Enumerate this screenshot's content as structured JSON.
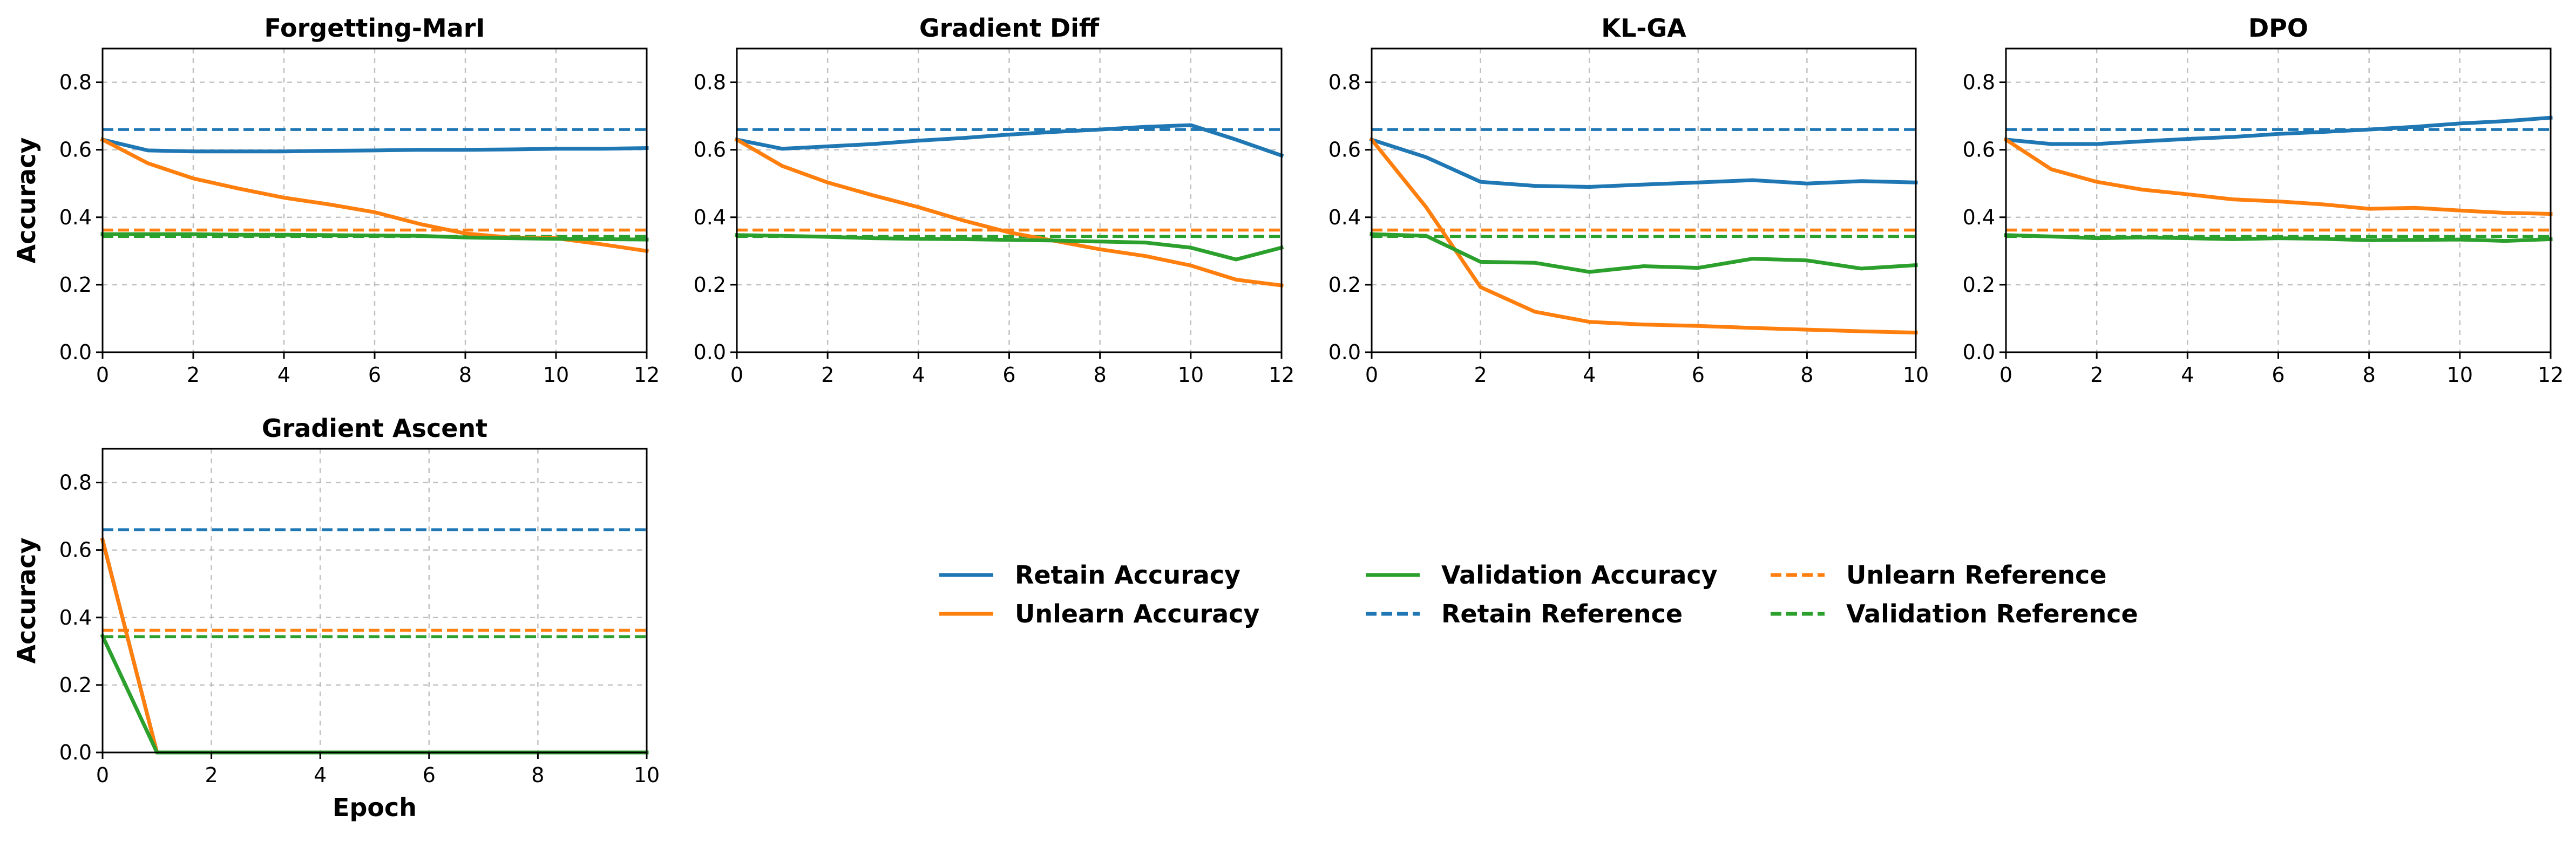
{
  "legend": {
    "items": [
      {
        "label": "Retain Accuracy",
        "color": "#1f77b4",
        "dashed": false
      },
      {
        "label": "Unlearn Accuracy",
        "color": "#ff7f0e",
        "dashed": false
      },
      {
        "label": "Validation Accuracy",
        "color": "#2ca02c",
        "dashed": false
      },
      {
        "label": "Retain Reference",
        "color": "#1f77b4",
        "dashed": true
      },
      {
        "label": "Unlearn Reference",
        "color": "#ff7f0e",
        "dashed": true
      },
      {
        "label": "Validation Reference",
        "color": "#2ca02c",
        "dashed": true
      }
    ]
  },
  "chart_data": [
    {
      "type": "line",
      "title": "Forgetting-MarI",
      "xlabel": "",
      "ylabel": "Accuracy",
      "xlim": [
        0,
        12
      ],
      "ylim": [
        0,
        0.9
      ],
      "xticks": [
        "0",
        "2",
        "4",
        "6",
        "8",
        "10",
        "12"
      ],
      "yticks": [
        "0.0",
        "0.2",
        "0.4",
        "0.6",
        "0.8"
      ],
      "grid": true,
      "x": [
        0,
        1,
        2,
        3,
        4,
        5,
        6,
        7,
        8,
        9,
        10,
        11,
        12
      ],
      "series": [
        {
          "name": "Retain Accuracy",
          "color": "#1f77b4",
          "values": [
            0.63,
            0.598,
            0.595,
            0.595,
            0.595,
            0.597,
            0.598,
            0.6,
            0.6,
            0.601,
            0.603,
            0.603,
            0.605
          ]
        },
        {
          "name": "Unlearn Accuracy",
          "color": "#ff7f0e",
          "values": [
            0.63,
            0.56,
            0.515,
            0.485,
            0.458,
            0.438,
            0.415,
            0.38,
            0.352,
            0.34,
            0.338,
            0.32,
            0.3
          ]
        },
        {
          "name": "Validation Accuracy",
          "color": "#2ca02c",
          "values": [
            0.35,
            0.35,
            0.35,
            0.348,
            0.348,
            0.347,
            0.346,
            0.345,
            0.34,
            0.338,
            0.336,
            0.335,
            0.334
          ]
        }
      ],
      "references": [
        {
          "name": "Retain Reference",
          "color": "#1f77b4",
          "value": 0.66
        },
        {
          "name": "Unlearn Reference",
          "color": "#ff7f0e",
          "value": 0.362
        },
        {
          "name": "Validation Reference",
          "color": "#2ca02c",
          "value": 0.343
        }
      ]
    },
    {
      "type": "line",
      "title": "Gradient Diff",
      "xlabel": "",
      "ylabel": "",
      "xlim": [
        0,
        12
      ],
      "ylim": [
        0,
        0.9
      ],
      "xticks": [
        "0",
        "2",
        "4",
        "6",
        "8",
        "10",
        "12"
      ],
      "yticks": [
        "0.0",
        "0.2",
        "0.4",
        "0.6",
        "0.8"
      ],
      "grid": true,
      "x": [
        0,
        1,
        2,
        3,
        4,
        5,
        6,
        7,
        8,
        9,
        10,
        11,
        12
      ],
      "series": [
        {
          "name": "Retain Accuracy",
          "color": "#1f77b4",
          "values": [
            0.63,
            0.603,
            0.61,
            0.617,
            0.627,
            0.635,
            0.645,
            0.653,
            0.66,
            0.668,
            0.673,
            0.63,
            0.583
          ]
        },
        {
          "name": "Unlearn Accuracy",
          "color": "#ff7f0e",
          "values": [
            0.63,
            0.552,
            0.503,
            0.465,
            0.43,
            0.39,
            0.355,
            0.33,
            0.305,
            0.285,
            0.257,
            0.215,
            0.198
          ]
        },
        {
          "name": "Validation Accuracy",
          "color": "#2ca02c",
          "values": [
            0.347,
            0.345,
            0.342,
            0.338,
            0.336,
            0.335,
            0.333,
            0.331,
            0.328,
            0.325,
            0.31,
            0.275,
            0.31
          ]
        }
      ],
      "references": [
        {
          "name": "Retain Reference",
          "color": "#1f77b4",
          "value": 0.66
        },
        {
          "name": "Unlearn Reference",
          "color": "#ff7f0e",
          "value": 0.362
        },
        {
          "name": "Validation Reference",
          "color": "#2ca02c",
          "value": 0.343
        }
      ]
    },
    {
      "type": "line",
      "title": "KL-GA",
      "xlabel": "",
      "ylabel": "",
      "xlim": [
        0,
        10
      ],
      "ylim": [
        0,
        0.9
      ],
      "xticks": [
        "0",
        "2",
        "4",
        "6",
        "8",
        "10"
      ],
      "yticks": [
        "0.0",
        "0.2",
        "0.4",
        "0.6",
        "0.8"
      ],
      "grid": true,
      "x": [
        0,
        1,
        2,
        3,
        4,
        5,
        6,
        7,
        8,
        9,
        10
      ],
      "series": [
        {
          "name": "Retain Accuracy",
          "color": "#1f77b4",
          "values": [
            0.63,
            0.578,
            0.505,
            0.493,
            0.49,
            0.497,
            0.503,
            0.51,
            0.5,
            0.507,
            0.503
          ]
        },
        {
          "name": "Unlearn Accuracy",
          "color": "#ff7f0e",
          "values": [
            0.63,
            0.43,
            0.193,
            0.12,
            0.09,
            0.082,
            0.078,
            0.072,
            0.067,
            0.062,
            0.058
          ]
        },
        {
          "name": "Validation Accuracy",
          "color": "#2ca02c",
          "values": [
            0.35,
            0.345,
            0.268,
            0.265,
            0.238,
            0.255,
            0.25,
            0.277,
            0.272,
            0.248,
            0.258
          ]
        }
      ],
      "references": [
        {
          "name": "Retain Reference",
          "color": "#1f77b4",
          "value": 0.66
        },
        {
          "name": "Unlearn Reference",
          "color": "#ff7f0e",
          "value": 0.362
        },
        {
          "name": "Validation Reference",
          "color": "#2ca02c",
          "value": 0.343
        }
      ]
    },
    {
      "type": "line",
      "title": "DPO",
      "xlabel": "",
      "ylabel": "",
      "xlim": [
        0,
        12
      ],
      "ylim": [
        0,
        0.9
      ],
      "xticks": [
        "0",
        "2",
        "4",
        "6",
        "8",
        "10",
        "12"
      ],
      "yticks": [
        "0.0",
        "0.2",
        "0.4",
        "0.6",
        "0.8"
      ],
      "grid": true,
      "x": [
        0,
        1,
        2,
        3,
        4,
        5,
        6,
        7,
        8,
        9,
        10,
        11,
        12
      ],
      "series": [
        {
          "name": "Retain Accuracy",
          "color": "#1f77b4",
          "values": [
            0.63,
            0.617,
            0.617,
            0.625,
            0.632,
            0.638,
            0.647,
            0.653,
            0.66,
            0.668,
            0.678,
            0.685,
            0.695
          ]
        },
        {
          "name": "Unlearn Accuracy",
          "color": "#ff7f0e",
          "values": [
            0.63,
            0.542,
            0.505,
            0.482,
            0.468,
            0.453,
            0.447,
            0.438,
            0.425,
            0.428,
            0.42,
            0.413,
            0.41
          ]
        },
        {
          "name": "Validation Accuracy",
          "color": "#2ca02c",
          "values": [
            0.347,
            0.343,
            0.338,
            0.34,
            0.338,
            0.335,
            0.338,
            0.336,
            0.332,
            0.333,
            0.334,
            0.33,
            0.335
          ]
        }
      ],
      "references": [
        {
          "name": "Retain Reference",
          "color": "#1f77b4",
          "value": 0.66
        },
        {
          "name": "Unlearn Reference",
          "color": "#ff7f0e",
          "value": 0.362
        },
        {
          "name": "Validation Reference",
          "color": "#2ca02c",
          "value": 0.343
        }
      ]
    },
    {
      "type": "line",
      "title": "Gradient Ascent",
      "xlabel": "Epoch",
      "ylabel": "Accuracy",
      "xlim": [
        0,
        10
      ],
      "ylim": [
        0,
        0.9
      ],
      "xticks": [
        "0",
        "2",
        "4",
        "6",
        "8",
        "10"
      ],
      "yticks": [
        "0.0",
        "0.2",
        "0.4",
        "0.6",
        "0.8"
      ],
      "grid": true,
      "x": [
        0,
        1,
        2,
        3,
        4,
        5,
        6,
        7,
        8,
        9,
        10
      ],
      "series": [
        {
          "name": "Retain Accuracy",
          "color": "#1f77b4",
          "values": [
            0.63,
            0,
            0,
            0,
            0,
            0,
            0,
            0,
            0,
            0,
            0
          ]
        },
        {
          "name": "Unlearn Accuracy",
          "color": "#ff7f0e",
          "values": [
            0.63,
            0,
            0,
            0,
            0,
            0,
            0,
            0,
            0,
            0,
            0
          ]
        },
        {
          "name": "Validation Accuracy",
          "color": "#2ca02c",
          "values": [
            0.345,
            0,
            0,
            0,
            0,
            0,
            0,
            0,
            0,
            0,
            0
          ]
        }
      ],
      "references": [
        {
          "name": "Retain Reference",
          "color": "#1f77b4",
          "value": 0.66
        },
        {
          "name": "Unlearn Reference",
          "color": "#ff7f0e",
          "value": 0.362
        },
        {
          "name": "Validation Reference",
          "color": "#2ca02c",
          "value": 0.343
        }
      ]
    }
  ]
}
